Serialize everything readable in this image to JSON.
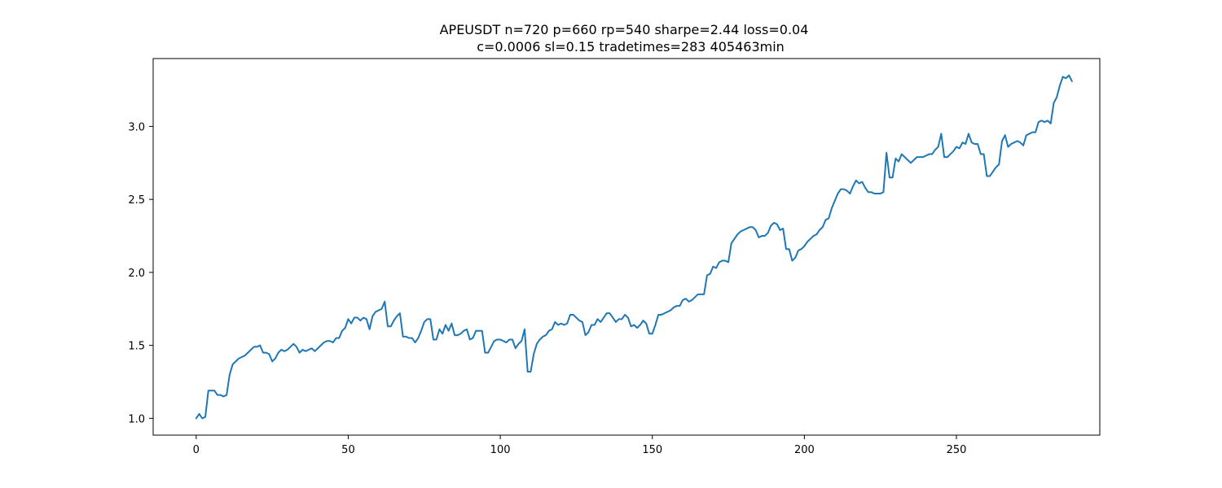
{
  "chart_data": {
    "type": "line",
    "title": "APEUSDT n=720 p=660 rp=540 sharpe=2.44 loss=0.04",
    "subtitle": "c=0.0006 sl=0.15 tradetimes=283  405463min",
    "xlabel": "",
    "ylabel": "",
    "xlim": [
      -14.15,
      297.15
    ],
    "ylim": [
      0.885,
      3.465
    ],
    "xticks": [
      0,
      50,
      100,
      150,
      200,
      250
    ],
    "xtick_labels": [
      "0",
      "50",
      "100",
      "150",
      "200",
      "250"
    ],
    "yticks": [
      1.0,
      1.5,
      2.0,
      2.5,
      3.0
    ],
    "ytick_labels": [
      "1.0",
      "1.5",
      "2.0",
      "2.5",
      "3.0"
    ],
    "grid": false,
    "legend": "none",
    "series": [
      {
        "color": "#1f77b4",
        "values": [
          1.0,
          1.03,
          1.0,
          1.01,
          1.19,
          1.19,
          1.19,
          1.16,
          1.16,
          1.15,
          1.16,
          1.3,
          1.37,
          1.39,
          1.41,
          1.42,
          1.43,
          1.45,
          1.47,
          1.49,
          1.49,
          1.5,
          1.45,
          1.45,
          1.44,
          1.39,
          1.41,
          1.45,
          1.47,
          1.46,
          1.47,
          1.49,
          1.51,
          1.49,
          1.45,
          1.47,
          1.46,
          1.47,
          1.48,
          1.46,
          1.48,
          1.5,
          1.52,
          1.53,
          1.53,
          1.52,
          1.55,
          1.55,
          1.6,
          1.62,
          1.68,
          1.65,
          1.69,
          1.69,
          1.67,
          1.69,
          1.68,
          1.61,
          1.7,
          1.73,
          1.74,
          1.75,
          1.8,
          1.63,
          1.63,
          1.67,
          1.7,
          1.72,
          1.56,
          1.56,
          1.55,
          1.55,
          1.52,
          1.55,
          1.6,
          1.66,
          1.68,
          1.68,
          1.54,
          1.54,
          1.61,
          1.58,
          1.64,
          1.6,
          1.65,
          1.57,
          1.57,
          1.58,
          1.6,
          1.61,
          1.54,
          1.55,
          1.6,
          1.6,
          1.6,
          1.45,
          1.45,
          1.49,
          1.53,
          1.54,
          1.54,
          1.53,
          1.52,
          1.54,
          1.54,
          1.48,
          1.51,
          1.53,
          1.61,
          1.32,
          1.32,
          1.44,
          1.51,
          1.54,
          1.56,
          1.57,
          1.6,
          1.61,
          1.66,
          1.64,
          1.65,
          1.64,
          1.65,
          1.71,
          1.71,
          1.69,
          1.67,
          1.66,
          1.57,
          1.59,
          1.64,
          1.64,
          1.68,
          1.66,
          1.69,
          1.72,
          1.72,
          1.69,
          1.66,
          1.68,
          1.68,
          1.71,
          1.69,
          1.63,
          1.64,
          1.62,
          1.64,
          1.67,
          1.65,
          1.58,
          1.58,
          1.64,
          1.71,
          1.71,
          1.72,
          1.73,
          1.74,
          1.76,
          1.77,
          1.77,
          1.81,
          1.82,
          1.8,
          1.81,
          1.83,
          1.85,
          1.85,
          1.85,
          1.98,
          1.99,
          2.04,
          2.03,
          2.07,
          2.08,
          2.08,
          2.07,
          2.2,
          2.23,
          2.26,
          2.28,
          2.29,
          2.3,
          2.31,
          2.31,
          2.29,
          2.24,
          2.25,
          2.25,
          2.27,
          2.32,
          2.34,
          2.33,
          2.29,
          2.3,
          2.16,
          2.16,
          2.08,
          2.1,
          2.15,
          2.16,
          2.18,
          2.21,
          2.23,
          2.25,
          2.26,
          2.29,
          2.31,
          2.36,
          2.37,
          2.44,
          2.49,
          2.54,
          2.57,
          2.57,
          2.56,
          2.54,
          2.59,
          2.63,
          2.61,
          2.62,
          2.58,
          2.55,
          2.55,
          2.54,
          2.54,
          2.54,
          2.55,
          2.82,
          2.65,
          2.65,
          2.78,
          2.76,
          2.81,
          2.79,
          2.77,
          2.75,
          2.77,
          2.79,
          2.79,
          2.79,
          2.8,
          2.81,
          2.81,
          2.84,
          2.86,
          2.95,
          2.79,
          2.79,
          2.81,
          2.83,
          2.86,
          2.85,
          2.89,
          2.88,
          2.95,
          2.89,
          2.88,
          2.88,
          2.81,
          2.81,
          2.66,
          2.66,
          2.69,
          2.72,
          2.74,
          2.9,
          2.94,
          2.86,
          2.88,
          2.89,
          2.9,
          2.89,
          2.87,
          2.94,
          2.95,
          2.96,
          2.96,
          3.03,
          3.04,
          3.03,
          3.04,
          3.02,
          3.16,
          3.2,
          3.28,
          3.34,
          3.33,
          3.35,
          3.31
        ]
      }
    ]
  }
}
